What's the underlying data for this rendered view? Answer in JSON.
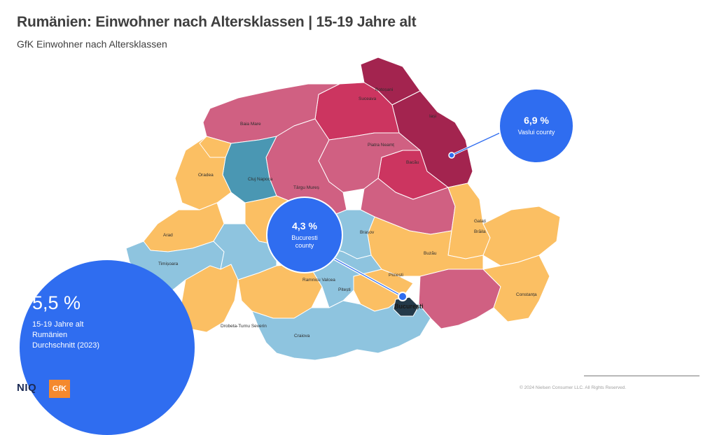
{
  "title": "Rumänien: Einwohner nach Altersklassen | 15-19 Jahre alt",
  "subtitle": "GfK Einwohner nach Altersklassen",
  "colors": {
    "dark_red": "#a3244f",
    "red": "#cc3560",
    "pink": "#d06082",
    "orange": "#fbbf63",
    "light_blue": "#8ec4df",
    "teal": "#4a97b3",
    "bubble_blue": "#2f6df0"
  },
  "map_labels": {
    "botosani": "Botoșani",
    "suceava": "Suceava",
    "iasi": "Iași",
    "baia_mare": "Baia Mare",
    "piatra_neamt": "Piatra Neamț",
    "bacau": "Bacău",
    "oradea": "Oradea",
    "cluj_napoca": "Cluj Napoca",
    "targu_mures": "Târgu Mureș",
    "arad": "Arad",
    "brasov": "Brașov",
    "galati": "Galați",
    "braila": "Brăila",
    "buzau": "Buzău",
    "timisoara": "Timișoara",
    "ploiesti": "Ploiești",
    "ramnicu_valcea": "Ramnicu Valcea",
    "pitesti": "Pitești",
    "bucuresti": "București",
    "constanta": "Constanța",
    "drobeta": "Drobeta-Turnu Severin",
    "craiova": "Craiova"
  },
  "callouts": {
    "vaslui": {
      "value": "6,9 %",
      "label": "Vaslui county"
    },
    "bucuresti": {
      "value": "4,3 %",
      "label_line1": "Bucuresti",
      "label_line2": "county"
    }
  },
  "average": {
    "value": "5,5 %",
    "line1": "15-19 Jahre alt",
    "line2": "Rumänien",
    "line3": "Durchschnitt (2023)"
  },
  "footer": {
    "copyright": "© 2024 Nielsen Consumer LLC. All Rights Reserved.",
    "logo_niq": "NIQ",
    "logo_gfk": "GfK"
  }
}
